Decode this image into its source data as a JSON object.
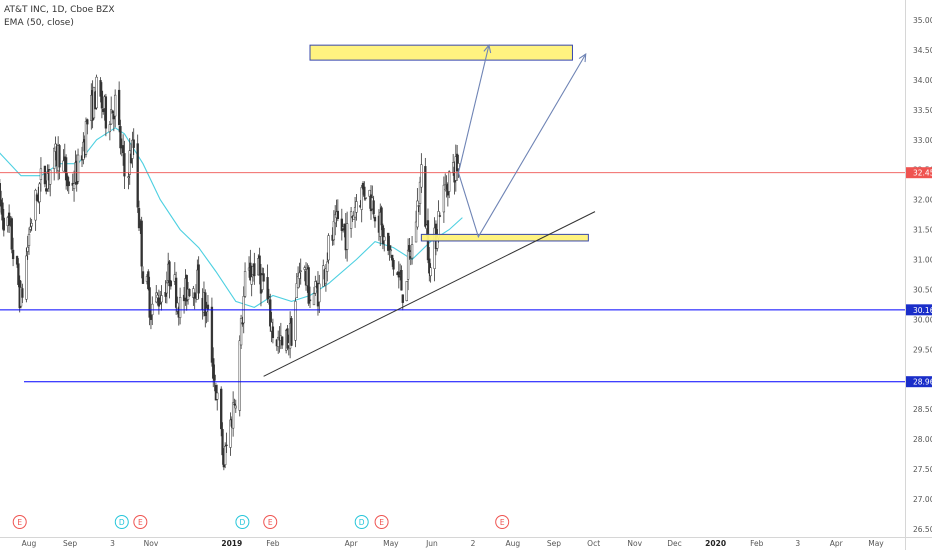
{
  "symbol_title": "AT&T INC, 1D, Cboe BZX",
  "indicator_label": "EMA (50, close)",
  "colors": {
    "up": "#ffffff",
    "up_border": "#333333",
    "down": "#333333",
    "ema": "#4dd0e1",
    "support": "#0000ff",
    "price_line": "#ef5350",
    "price_badge": "#ef5350",
    "support_badge": "#1a2ec9",
    "zone_fill": "#fff37a",
    "zone_border": "#2c3ea8",
    "arrow": "#6f84b5",
    "trendline": "#333333",
    "earnings": "#ef5350",
    "dividend": "#26c6da",
    "axis_text": "#555555"
  },
  "chart_data": {
    "type": "candlestick",
    "title": "AT&T INC, 1D, Cboe BZX",
    "ylim": [
      26.5,
      35.0
    ],
    "y_ticks": [
      35.0,
      34.5,
      34.0,
      33.5,
      33.0,
      32.5,
      32.0,
      31.5,
      31.0,
      30.5,
      30.0,
      29.5,
      29.0,
      28.5,
      28.0,
      27.5,
      27.0,
      26.5
    ],
    "x_ticks": [
      {
        "label": "Aug",
        "date": "2018-08-01"
      },
      {
        "label": "Sep",
        "date": "2018-09-01"
      },
      {
        "label": "3",
        "date": "2018-10-03"
      },
      {
        "label": "Nov",
        "date": "2018-11-01"
      },
      {
        "label": "2019",
        "date": "2019-01-01",
        "bold": true
      },
      {
        "label": "Feb",
        "date": "2019-02-01"
      },
      {
        "label": "Apr",
        "date": "2019-04-01"
      },
      {
        "label": "May",
        "date": "2019-05-01"
      },
      {
        "label": "Jun",
        "date": "2019-06-01"
      },
      {
        "label": "2",
        "date": "2019-07-02"
      },
      {
        "label": "Aug",
        "date": "2019-08-01"
      },
      {
        "label": "Sep",
        "date": "2019-09-01"
      },
      {
        "label": "Oct",
        "date": "2019-10-01"
      },
      {
        "label": "Nov",
        "date": "2019-11-01"
      },
      {
        "label": "Dec",
        "date": "2019-12-01"
      },
      {
        "label": "2020",
        "date": "2020-01-01",
        "bold": true
      },
      {
        "label": "Feb",
        "date": "2020-02-01"
      },
      {
        "label": "3",
        "date": "2020-03-03"
      },
      {
        "label": "Apr",
        "date": "2020-04-01"
      },
      {
        "label": "May",
        "date": "2020-05-01"
      }
    ],
    "price_path": [
      [
        "2018-07-09",
        32.0
      ],
      [
        "2018-07-18",
        31.4
      ],
      [
        "2018-07-26",
        30.3
      ],
      [
        "2018-08-02",
        31.6
      ],
      [
        "2018-08-10",
        32.3
      ],
      [
        "2018-08-17",
        32.5
      ],
      [
        "2018-08-24",
        32.8
      ],
      [
        "2018-08-31",
        32.2
      ],
      [
        "2018-09-07",
        32.5
      ],
      [
        "2018-09-14",
        33.3
      ],
      [
        "2018-09-21",
        33.8
      ],
      [
        "2018-09-28",
        33.4
      ],
      [
        "2018-10-05",
        33.6
      ],
      [
        "2018-10-12",
        32.4
      ],
      [
        "2018-10-19",
        32.9
      ],
      [
        "2018-10-26",
        30.8
      ],
      [
        "2018-11-01",
        30.2
      ],
      [
        "2018-11-08",
        30.4
      ],
      [
        "2018-11-16",
        30.8
      ],
      [
        "2018-11-23",
        30.2
      ],
      [
        "2018-11-30",
        30.6
      ],
      [
        "2018-12-07",
        30.6
      ],
      [
        "2018-12-14",
        30.0
      ],
      [
        "2018-12-20",
        28.8
      ],
      [
        "2018-12-26",
        27.6
      ],
      [
        "2019-01-04",
        28.8
      ],
      [
        "2019-01-11",
        30.6
      ],
      [
        "2019-01-18",
        30.9
      ],
      [
        "2019-01-25",
        30.6
      ],
      [
        "2019-02-01",
        29.8
      ],
      [
        "2019-02-08",
        29.5
      ],
      [
        "2019-02-15",
        29.8
      ],
      [
        "2019-02-22",
        31.0
      ],
      [
        "2019-03-01",
        30.4
      ],
      [
        "2019-03-08",
        30.5
      ],
      [
        "2019-03-15",
        31.2
      ],
      [
        "2019-03-22",
        31.6
      ],
      [
        "2019-03-29",
        31.4
      ],
      [
        "2019-04-05",
        32.0
      ],
      [
        "2019-04-12",
        32.2
      ],
      [
        "2019-04-19",
        31.9
      ],
      [
        "2019-04-26",
        31.3
      ],
      [
        "2019-05-03",
        30.9
      ],
      [
        "2019-05-10",
        30.5
      ],
      [
        "2019-05-17",
        31.2
      ],
      [
        "2019-05-24",
        32.4
      ],
      [
        "2019-05-31",
        30.8
      ],
      [
        "2019-06-07",
        31.9
      ],
      [
        "2019-06-14",
        32.4
      ],
      [
        "2019-06-21",
        32.6
      ]
    ],
    "ema_50": [
      [
        "2018-07-09",
        32.8
      ],
      [
        "2018-07-26",
        32.4
      ],
      [
        "2018-08-10",
        32.4
      ],
      [
        "2018-08-24",
        32.6
      ],
      [
        "2018-09-07",
        32.6
      ],
      [
        "2018-09-21",
        33.0
      ],
      [
        "2018-10-05",
        33.2
      ],
      [
        "2018-10-12",
        33.1
      ],
      [
        "2018-10-26",
        32.6
      ],
      [
        "2018-11-08",
        32.0
      ],
      [
        "2018-11-23",
        31.5
      ],
      [
        "2018-12-07",
        31.2
      ],
      [
        "2018-12-20",
        30.8
      ],
      [
        "2019-01-04",
        30.3
      ],
      [
        "2019-01-18",
        30.2
      ],
      [
        "2019-02-01",
        30.4
      ],
      [
        "2019-02-15",
        30.3
      ],
      [
        "2019-03-01",
        30.4
      ],
      [
        "2019-03-15",
        30.6
      ],
      [
        "2019-04-05",
        31.0
      ],
      [
        "2019-04-19",
        31.3
      ],
      [
        "2019-05-03",
        31.2
      ],
      [
        "2019-05-17",
        31.0
      ],
      [
        "2019-05-31",
        31.3
      ],
      [
        "2019-06-14",
        31.5
      ],
      [
        "2019-06-24",
        31.7
      ]
    ],
    "horizontal_levels": [
      {
        "price": 32.45,
        "label": "32.45",
        "style": "last-price"
      },
      {
        "price": 30.16,
        "label": "30.16",
        "style": "support"
      },
      {
        "price": 28.96,
        "label": "28.96",
        "style": "support"
      }
    ],
    "zones": [
      {
        "name": "upper-target-zone",
        "from": "2019-03-01",
        "to": "2019-09-15",
        "price_low": 34.33,
        "price_high": 34.58
      },
      {
        "name": "pullback-zone",
        "from": "2019-05-24",
        "to": "2019-09-27",
        "price_low": 31.31,
        "price_high": 31.42
      }
    ],
    "trendline": [
      [
        "2019-01-25",
        29.05
      ],
      [
        "2019-10-02",
        31.8
      ]
    ],
    "projection_arrows": [
      [
        [
          "2019-06-21",
          32.45
        ],
        [
          "2019-07-14",
          34.58
        ]
      ],
      [
        [
          "2019-06-21",
          32.45
        ],
        [
          "2019-07-06",
          31.38
        ],
        [
          "2019-09-25",
          34.43
        ]
      ]
    ],
    "event_markers": [
      {
        "label": "E",
        "type": "earnings",
        "date": "2018-07-25"
      },
      {
        "label": "D",
        "type": "dividend",
        "date": "2018-10-10"
      },
      {
        "label": "E",
        "type": "earnings",
        "date": "2018-10-24"
      },
      {
        "label": "D",
        "type": "dividend",
        "date": "2019-01-09"
      },
      {
        "label": "E",
        "type": "earnings",
        "date": "2019-01-30"
      },
      {
        "label": "D",
        "type": "dividend",
        "date": "2019-04-09"
      },
      {
        "label": "E",
        "type": "earnings",
        "date": "2019-04-24"
      },
      {
        "label": "E",
        "type": "earnings",
        "date": "2019-07-24"
      }
    ]
  }
}
